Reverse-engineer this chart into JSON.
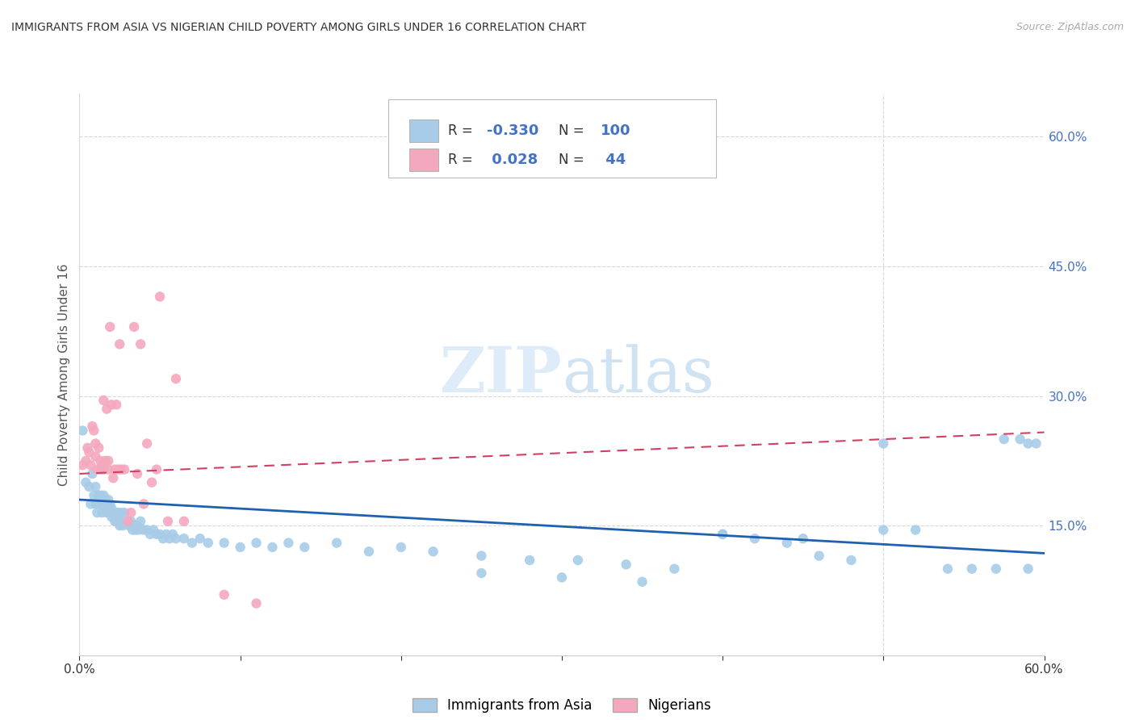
{
  "title": "IMMIGRANTS FROM ASIA VS NIGERIAN CHILD POVERTY AMONG GIRLS UNDER 16 CORRELATION CHART",
  "source": "Source: ZipAtlas.com",
  "ylabel": "Child Poverty Among Girls Under 16",
  "xlim": [
    0.0,
    0.6
  ],
  "ylim": [
    0.0,
    0.65
  ],
  "yticks_right": [
    0.15,
    0.3,
    0.45,
    0.6
  ],
  "ytick_labels_right": [
    "15.0%",
    "30.0%",
    "45.0%",
    "60.0%"
  ],
  "blue_color": "#a8cce8",
  "pink_color": "#f4a8be",
  "blue_line_color": "#2060b0",
  "pink_line_color": "#d04060",
  "right_tick_color": "#4472c4",
  "grid_color": "#d8d8d8",
  "background_color": "#ffffff",
  "title_color": "#333333",
  "axis_label_color": "#555555",
  "blue_scatter_x": [
    0.002,
    0.004,
    0.006,
    0.007,
    0.008,
    0.009,
    0.01,
    0.01,
    0.011,
    0.012,
    0.013,
    0.013,
    0.014,
    0.014,
    0.015,
    0.015,
    0.016,
    0.016,
    0.017,
    0.017,
    0.018,
    0.018,
    0.019,
    0.019,
    0.02,
    0.02,
    0.021,
    0.022,
    0.022,
    0.023,
    0.023,
    0.024,
    0.024,
    0.025,
    0.025,
    0.026,
    0.026,
    0.027,
    0.028,
    0.028,
    0.03,
    0.031,
    0.032,
    0.033,
    0.034,
    0.035,
    0.036,
    0.037,
    0.038,
    0.04,
    0.042,
    0.044,
    0.046,
    0.048,
    0.05,
    0.052,
    0.054,
    0.056,
    0.058,
    0.06,
    0.065,
    0.07,
    0.075,
    0.08,
    0.09,
    0.1,
    0.11,
    0.12,
    0.13,
    0.14,
    0.16,
    0.18,
    0.2,
    0.22,
    0.25,
    0.28,
    0.31,
    0.34,
    0.37,
    0.4,
    0.42,
    0.44,
    0.46,
    0.48,
    0.5,
    0.52,
    0.54,
    0.555,
    0.57,
    0.585,
    0.59,
    0.595,
    0.25,
    0.3,
    0.35,
    0.4,
    0.45,
    0.5,
    0.575,
    0.59
  ],
  "blue_scatter_y": [
    0.26,
    0.2,
    0.195,
    0.175,
    0.21,
    0.185,
    0.175,
    0.195,
    0.165,
    0.185,
    0.175,
    0.185,
    0.165,
    0.175,
    0.175,
    0.185,
    0.17,
    0.18,
    0.165,
    0.175,
    0.17,
    0.18,
    0.165,
    0.175,
    0.16,
    0.17,
    0.165,
    0.155,
    0.165,
    0.155,
    0.165,
    0.155,
    0.165,
    0.15,
    0.16,
    0.155,
    0.165,
    0.15,
    0.155,
    0.165,
    0.155,
    0.15,
    0.155,
    0.145,
    0.15,
    0.145,
    0.15,
    0.145,
    0.155,
    0.145,
    0.145,
    0.14,
    0.145,
    0.14,
    0.14,
    0.135,
    0.14,
    0.135,
    0.14,
    0.135,
    0.135,
    0.13,
    0.135,
    0.13,
    0.13,
    0.125,
    0.13,
    0.125,
    0.13,
    0.125,
    0.13,
    0.12,
    0.125,
    0.12,
    0.115,
    0.11,
    0.11,
    0.105,
    0.1,
    0.14,
    0.135,
    0.13,
    0.115,
    0.11,
    0.245,
    0.145,
    0.1,
    0.1,
    0.1,
    0.25,
    0.1,
    0.245,
    0.095,
    0.09,
    0.085,
    0.14,
    0.135,
    0.145,
    0.25,
    0.245
  ],
  "pink_scatter_x": [
    0.002,
    0.004,
    0.005,
    0.006,
    0.007,
    0.008,
    0.009,
    0.01,
    0.01,
    0.011,
    0.012,
    0.013,
    0.013,
    0.014,
    0.015,
    0.015,
    0.016,
    0.017,
    0.018,
    0.018,
    0.019,
    0.02,
    0.021,
    0.022,
    0.023,
    0.024,
    0.025,
    0.026,
    0.028,
    0.03,
    0.032,
    0.034,
    0.036,
    0.038,
    0.04,
    0.042,
    0.045,
    0.048,
    0.05,
    0.055,
    0.06,
    0.065,
    0.09,
    0.11
  ],
  "pink_scatter_y": [
    0.22,
    0.225,
    0.24,
    0.235,
    0.22,
    0.265,
    0.26,
    0.245,
    0.23,
    0.215,
    0.24,
    0.215,
    0.225,
    0.22,
    0.295,
    0.215,
    0.225,
    0.285,
    0.215,
    0.225,
    0.38,
    0.29,
    0.205,
    0.215,
    0.29,
    0.215,
    0.36,
    0.215,
    0.215,
    0.155,
    0.165,
    0.38,
    0.21,
    0.36,
    0.175,
    0.245,
    0.2,
    0.215,
    0.415,
    0.155,
    0.32,
    0.155,
    0.07,
    0.06
  ],
  "blue_line_y_start": 0.18,
  "blue_line_y_end": 0.118,
  "pink_line_y_start": 0.21,
  "pink_line_y_end": 0.258
}
